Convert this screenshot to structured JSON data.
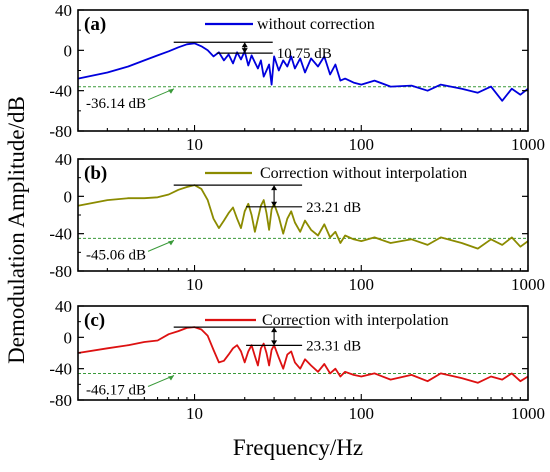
{
  "figure": {
    "xlabel": "Frequency/Hz",
    "ylabel": "Demodulation Amplitude/dB"
  },
  "chart_data": [
    {
      "type": "line",
      "panel_label": "(a)",
      "x_scale": "log",
      "xlim": [
        2,
        1000
      ],
      "ylim": [
        -80,
        40
      ],
      "xticks": [
        10,
        100,
        1000
      ],
      "xtick_labels": [
        "10",
        "100",
        "1000"
      ],
      "yticks": [
        40,
        0,
        -40,
        -80
      ],
      "ytick_labels": [
        "40",
        "0",
        "-40",
        "-80"
      ],
      "grid": false,
      "legend_position": "top-center",
      "series": [
        {
          "name": "without correction",
          "color": "#0000dd",
          "x": [
            2,
            3,
            4,
            5,
            6,
            7,
            8,
            9,
            10,
            11,
            12,
            13,
            14,
            15,
            16,
            17,
            18,
            19,
            20,
            21,
            22,
            23,
            24,
            25,
            26,
            27,
            28,
            29,
            30,
            32,
            34,
            36,
            38,
            40,
            43,
            46,
            50,
            55,
            60,
            65,
            70,
            75,
            80,
            90,
            100,
            120,
            150,
            200,
            250,
            300,
            400,
            500,
            600,
            700,
            800,
            900,
            1000
          ],
          "y": [
            -28,
            -22,
            -16,
            -10,
            -5,
            -1,
            3,
            6,
            7,
            4,
            0,
            -6,
            -2,
            -10,
            -4,
            -13,
            -2,
            -9,
            -1,
            -15,
            -5,
            -12,
            -18,
            -10,
            -26,
            -20,
            -14,
            -34,
            -6,
            -20,
            -10,
            -16,
            -6,
            -18,
            -8,
            -22,
            -8,
            -16,
            -6,
            -24,
            -14,
            -30,
            -28,
            -32,
            -34,
            -30,
            -36,
            -35,
            -40,
            -34,
            -38,
            -42,
            -36,
            -50,
            -38,
            -44,
            -38
          ]
        }
      ],
      "reference_lines": [
        {
          "label": "-36.14 dB",
          "value": -36.14,
          "color": "#3a9a3a"
        }
      ],
      "annotations": [
        {
          "label": "10.75 dB",
          "x": 20,
          "y_top": 8,
          "y_bottom": -2.75
        }
      ]
    },
    {
      "type": "line",
      "panel_label": "(b)",
      "x_scale": "log",
      "xlim": [
        2,
        1000
      ],
      "ylim": [
        -80,
        40
      ],
      "xticks": [
        10,
        100,
        1000
      ],
      "xtick_labels": [
        "10",
        "100",
        "1000"
      ],
      "yticks": [
        40,
        0,
        -40,
        -80
      ],
      "ytick_labels": [
        "40",
        "0",
        "-40",
        "-80"
      ],
      "grid": false,
      "legend_position": "top-center",
      "series": [
        {
          "name": "Correction without interpolation",
          "color": "#8b8b00",
          "x": [
            2,
            3,
            4,
            5,
            6,
            7,
            8,
            9,
            10,
            11,
            12,
            13,
            14,
            15,
            16,
            17,
            18,
            19,
            20,
            21,
            22,
            23,
            24,
            25,
            26,
            27,
            28,
            29,
            30,
            32,
            34,
            36,
            38,
            40,
            43,
            46,
            50,
            55,
            60,
            65,
            70,
            75,
            80,
            90,
            100,
            120,
            150,
            200,
            250,
            300,
            400,
            500,
            600,
            700,
            800,
            900,
            1000
          ],
          "y": [
            -10,
            -4,
            -2,
            -2,
            -1,
            2,
            7,
            10,
            12,
            8,
            -4,
            -24,
            -34,
            -26,
            -18,
            -12,
            -24,
            -34,
            -16,
            -8,
            -20,
            -38,
            -24,
            -10,
            -4,
            -18,
            -36,
            -14,
            -8,
            -22,
            -40,
            -24,
            -16,
            -28,
            -38,
            -26,
            -36,
            -42,
            -30,
            -44,
            -38,
            -50,
            -42,
            -46,
            -48,
            -44,
            -50,
            -46,
            -52,
            -44,
            -50,
            -56,
            -46,
            -52,
            -44,
            -54,
            -48
          ]
        }
      ],
      "reference_lines": [
        {
          "label": "-45.06 dB",
          "value": -45.06,
          "color": "#3a9a3a"
        }
      ],
      "annotations": [
        {
          "label": "23.21 dB",
          "x": 30,
          "y_top": 12,
          "y_bottom": -11.21
        }
      ]
    },
    {
      "type": "line",
      "panel_label": "(c)",
      "x_scale": "log",
      "xlim": [
        2,
        1000
      ],
      "ylim": [
        -80,
        40
      ],
      "xticks": [
        10,
        100,
        1000
      ],
      "xtick_labels": [
        "10",
        "100",
        "1000"
      ],
      "yticks": [
        40,
        0,
        -40,
        -80
      ],
      "ytick_labels": [
        "40",
        "0",
        "-40",
        "-80"
      ],
      "grid": false,
      "legend_position": "top-center",
      "series": [
        {
          "name": "Correction with interpolation",
          "color": "#dd1111",
          "x": [
            2,
            3,
            4,
            5,
            6,
            7,
            8,
            9,
            10,
            11,
            12,
            13,
            14,
            15,
            16,
            17,
            18,
            19,
            20,
            21,
            22,
            23,
            24,
            25,
            26,
            27,
            28,
            29,
            30,
            32,
            34,
            36,
            38,
            40,
            43,
            46,
            50,
            55,
            60,
            65,
            70,
            75,
            80,
            90,
            100,
            120,
            150,
            200,
            250,
            300,
            400,
            500,
            600,
            700,
            800,
            900,
            1000
          ],
          "y": [
            -20,
            -14,
            -10,
            -6,
            -4,
            4,
            8,
            12,
            13,
            10,
            2,
            -16,
            -32,
            -30,
            -22,
            -14,
            -10,
            -18,
            -32,
            -18,
            -10,
            -24,
            -36,
            -14,
            -8,
            -20,
            -36,
            -16,
            -10,
            -26,
            -40,
            -22,
            -18,
            -32,
            -40,
            -28,
            -36,
            -44,
            -34,
            -46,
            -40,
            -50,
            -44,
            -48,
            -50,
            -46,
            -54,
            -48,
            -56,
            -46,
            -52,
            -58,
            -50,
            -54,
            -46,
            -56,
            -50
          ]
        }
      ],
      "reference_lines": [
        {
          "label": "-46.17 dB",
          "value": -46.17,
          "color": "#3a9a3a"
        }
      ],
      "annotations": [
        {
          "label": "23.31 dB",
          "x": 30,
          "y_top": 13,
          "y_bottom": -10.31
        }
      ]
    }
  ]
}
